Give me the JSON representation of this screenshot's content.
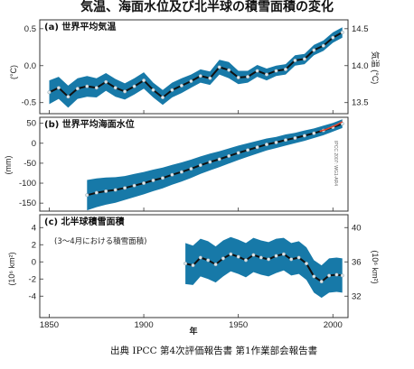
{
  "figure_title": "気温、海面水位及び北半球の積雪面積の変化",
  "caption": "出典 IPCC 第4次評価報告書 第1作業部会報告書",
  "colors": {
    "band": "#1779a8",
    "smooth": "#111111",
    "dots": "#dfe6ea",
    "recent": "#e0452d"
  },
  "chart_data": [
    {
      "type": "line",
      "title": "(a) 世界平均気温",
      "ylabel": "(°C)",
      "ylabel2": "気温 (°C)",
      "xlim": [
        1845,
        2008
      ],
      "ylim": [
        -0.65,
        0.62
      ],
      "yticks": [
        "-0.5",
        "0.0",
        "0.5"
      ],
      "yticks2": [
        "13.5",
        "14.0",
        "14.5"
      ],
      "series": [
        {
          "role": "smoothed",
          "x": [
            1850,
            1855,
            1860,
            1865,
            1870,
            1875,
            1880,
            1885,
            1890,
            1895,
            1900,
            1905,
            1910,
            1915,
            1920,
            1925,
            1930,
            1935,
            1940,
            1945,
            1950,
            1955,
            1960,
            1965,
            1970,
            1975,
            1980,
            1985,
            1990,
            1995,
            2000,
            2005
          ],
          "y": [
            -0.36,
            -0.3,
            -0.42,
            -0.31,
            -0.28,
            -0.3,
            -0.22,
            -0.3,
            -0.35,
            -0.28,
            -0.2,
            -0.33,
            -0.43,
            -0.33,
            -0.27,
            -0.21,
            -0.14,
            -0.17,
            -0.02,
            -0.06,
            -0.16,
            -0.15,
            -0.07,
            -0.12,
            -0.07,
            -0.05,
            0.07,
            0.09,
            0.21,
            0.27,
            0.38,
            0.45
          ]
        }
      ],
      "uncertainty": [
        0.16,
        0.15,
        0.15,
        0.14,
        0.14,
        0.13,
        0.12,
        0.12,
        0.11,
        0.11,
        0.11,
        0.1,
        0.1,
        0.1,
        0.1,
        0.09,
        0.09,
        0.09,
        0.1,
        0.11,
        0.09,
        0.08,
        0.08,
        0.08,
        0.07,
        0.07,
        0.07,
        0.07,
        0.07,
        0.07,
        0.07,
        0.07
      ]
    },
    {
      "type": "line",
      "title": "(b) 世界平均海面水位",
      "ylabel": "(mm)",
      "watermark": "IPCC 2007: WG1-AR4",
      "xlim": [
        1845,
        2008
      ],
      "ylim": [
        -170,
        65
      ],
      "yticks": [
        "-150",
        "-100",
        "-50",
        "0",
        "50"
      ],
      "series": [
        {
          "role": "smoothed",
          "x": [
            1870,
            1875,
            1880,
            1885,
            1890,
            1895,
            1900,
            1905,
            1910,
            1915,
            1920,
            1925,
            1930,
            1935,
            1940,
            1945,
            1950,
            1955,
            1960,
            1965,
            1970,
            1975,
            1980,
            1985,
            1990,
            1995,
            2000,
            2005
          ],
          "y": [
            -130,
            -124,
            -120,
            -117,
            -112,
            -106,
            -100,
            -93,
            -87,
            -79,
            -72,
            -64,
            -55,
            -47,
            -40,
            -32,
            -24,
            -17,
            -10,
            -3,
            2,
            8,
            13,
            19,
            25,
            32,
            40,
            49
          ]
        },
        {
          "role": "recent",
          "x": [
            1993,
            1996,
            1999,
            2002,
            2005
          ],
          "y": [
            30,
            34,
            40,
            46,
            54
          ]
        }
      ],
      "uncertainty": [
        38,
        36,
        34,
        32,
        30,
        29,
        28,
        27,
        26,
        25,
        24,
        23,
        22,
        21,
        20,
        19,
        18,
        17,
        16,
        15,
        14,
        14,
        13,
        13,
        12,
        12,
        11,
        11
      ]
    },
    {
      "type": "line",
      "title": "(c) 北半球積雪面積",
      "subtitle": "(3～4月における積雪面積)",
      "ylabel": "(10⁶ km²)",
      "ylabel2": "(10⁶ km²)",
      "xlabel": "年",
      "xlim": [
        1845,
        2008
      ],
      "ylim": [
        -6.5,
        5.5
      ],
      "yticks": [
        "-4",
        "-2",
        "0",
        "2",
        "4"
      ],
      "yticks2": [
        "32",
        "36",
        "40"
      ],
      "xticks": [
        "1850",
        "1900",
        "1950",
        "2000"
      ],
      "series": [
        {
          "role": "smoothed",
          "x": [
            1922,
            1926,
            1930,
            1934,
            1938,
            1942,
            1946,
            1950,
            1954,
            1958,
            1962,
            1966,
            1970,
            1974,
            1978,
            1982,
            1986,
            1990,
            1994,
            1998,
            2002,
            2005
          ],
          "y": [
            -0.2,
            -0.4,
            0.5,
            0.2,
            -0.3,
            0.4,
            0.9,
            0.6,
            0.2,
            0.8,
            0.5,
            0.3,
            0.7,
            0.9,
            0.3,
            0.5,
            -0.2,
            -1.7,
            -2.3,
            -1.6,
            -1.5,
            -1.6
          ]
        }
      ],
      "uncertainty": [
        2.4,
        2.3,
        2.2,
        2.2,
        2.1,
        2.1,
        2.0,
        2.0,
        2.0,
        2.0,
        2.0,
        2.0,
        2.0,
        1.9,
        1.9,
        1.9,
        1.9,
        1.9,
        1.9,
        2.0,
        2.0,
        2.0
      ]
    }
  ]
}
